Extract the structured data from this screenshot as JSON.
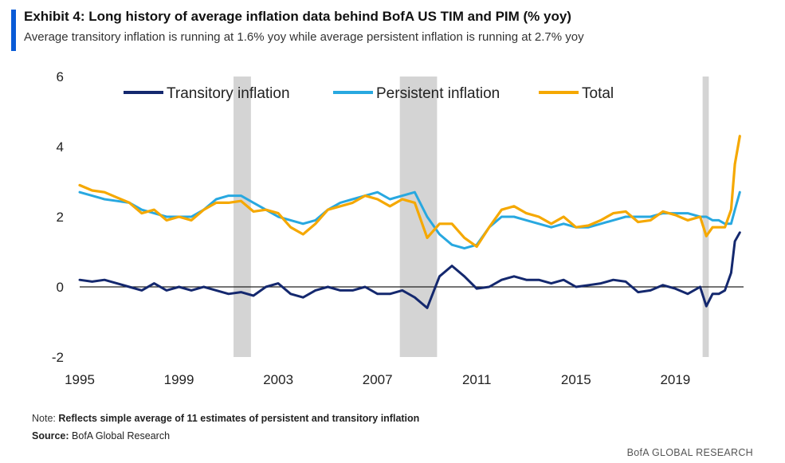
{
  "header": {
    "title": "Exhibit 4: Long history of average inflation data behind BofA US TIM and PIM (% yoy)",
    "subtitle": "Average transitory inflation is running at 1.6% yoy while average persistent inflation is running at 2.7% yoy"
  },
  "footer": {
    "note_label": "Note:",
    "note_text": "Reflects simple average of 11 estimates of persistent and transitory inflation",
    "source_label": "Source:",
    "source_text": "BofA Global Research",
    "brand": "BofA GLOBAL RESEARCH"
  },
  "colors": {
    "accent": "#0a5bd7",
    "transitory": "#14286e",
    "persistent": "#28a8e0",
    "total": "#f5a800",
    "recession": "#d4d4d4"
  },
  "chart_data": {
    "type": "line",
    "title": "Exhibit 4: Long history of average inflation data behind BofA US TIM and PIM (% yoy)",
    "subtitle": "Average transitory inflation is running at 1.6% yoy while average persistent inflation is running at 2.7% yoy",
    "xlabel": "",
    "ylabel": "",
    "xlim": [
      1995,
      2021.75
    ],
    "ylim": [
      -2,
      6
    ],
    "x_ticks": [
      "1995",
      "1999",
      "2003",
      "2007",
      "2011",
      "2015",
      "2019"
    ],
    "y_ticks": [
      "6",
      "4",
      "2",
      "0",
      "-2"
    ],
    "grid": false,
    "legend_position": "top",
    "recession_bands": [
      [
        2001.2,
        2001.9
      ],
      [
        2007.9,
        2009.4
      ],
      [
        2020.1,
        2020.35
      ]
    ],
    "series": [
      {
        "name": "Transitory inflation",
        "x": [
          1995.0,
          1995.5,
          1996.0,
          1996.5,
          1997.0,
          1997.5,
          1998.0,
          1998.5,
          1999.0,
          1999.5,
          2000.0,
          2000.5,
          2001.0,
          2001.5,
          2002.0,
          2002.5,
          2003.0,
          2003.5,
          2004.0,
          2004.5,
          2005.0,
          2005.5,
          2006.0,
          2006.5,
          2007.0,
          2007.5,
          2008.0,
          2008.5,
          2009.0,
          2009.5,
          2010.0,
          2010.5,
          2011.0,
          2011.5,
          2012.0,
          2012.5,
          2013.0,
          2013.5,
          2014.0,
          2014.5,
          2015.0,
          2015.5,
          2016.0,
          2016.5,
          2017.0,
          2017.5,
          2018.0,
          2018.5,
          2019.0,
          2019.5,
          2020.0,
          2020.25,
          2020.5,
          2020.75,
          2021.0,
          2021.25,
          2021.4,
          2021.6
        ],
        "values": [
          0.2,
          0.15,
          0.2,
          0.1,
          0.0,
          -0.1,
          0.1,
          -0.1,
          0.0,
          -0.1,
          0.0,
          -0.1,
          -0.2,
          -0.15,
          -0.25,
          0.0,
          0.1,
          -0.2,
          -0.3,
          -0.1,
          0.0,
          -0.1,
          -0.1,
          0.0,
          -0.2,
          -0.2,
          -0.1,
          -0.3,
          -0.6,
          0.3,
          0.6,
          0.3,
          -0.05,
          0.0,
          0.2,
          0.3,
          0.2,
          0.2,
          0.1,
          0.2,
          0.0,
          0.05,
          0.1,
          0.2,
          0.15,
          -0.15,
          -0.1,
          0.05,
          -0.05,
          -0.2,
          0.0,
          -0.55,
          -0.2,
          -0.2,
          -0.1,
          0.4,
          1.3,
          1.55
        ]
      },
      {
        "name": "Persistent inflation",
        "x": [
          1995.0,
          1995.5,
          1996.0,
          1996.5,
          1997.0,
          1997.5,
          1998.0,
          1998.5,
          1999.0,
          1999.5,
          2000.0,
          2000.5,
          2001.0,
          2001.5,
          2002.0,
          2002.5,
          2003.0,
          2003.5,
          2004.0,
          2004.5,
          2005.0,
          2005.5,
          2006.0,
          2006.5,
          2007.0,
          2007.5,
          2008.0,
          2008.5,
          2009.0,
          2009.5,
          2010.0,
          2010.5,
          2011.0,
          2011.5,
          2012.0,
          2012.5,
          2013.0,
          2013.5,
          2014.0,
          2014.5,
          2015.0,
          2015.5,
          2016.0,
          2016.5,
          2017.0,
          2017.5,
          2018.0,
          2018.5,
          2019.0,
          2019.5,
          2020.0,
          2020.25,
          2020.5,
          2020.75,
          2021.0,
          2021.25,
          2021.4,
          2021.6
        ],
        "values": [
          2.7,
          2.6,
          2.5,
          2.45,
          2.4,
          2.2,
          2.1,
          2.0,
          2.0,
          2.0,
          2.2,
          2.5,
          2.6,
          2.6,
          2.4,
          2.2,
          2.0,
          1.9,
          1.8,
          1.9,
          2.2,
          2.4,
          2.5,
          2.6,
          2.7,
          2.5,
          2.6,
          2.7,
          2.0,
          1.5,
          1.2,
          1.1,
          1.2,
          1.7,
          2.0,
          2.0,
          1.9,
          1.8,
          1.7,
          1.8,
          1.7,
          1.7,
          1.8,
          1.9,
          2.0,
          2.0,
          2.0,
          2.1,
          2.1,
          2.1,
          2.0,
          2.0,
          1.9,
          1.9,
          1.8,
          1.8,
          2.2,
          2.7
        ]
      },
      {
        "name": "Total",
        "x": [
          1995.0,
          1995.5,
          1996.0,
          1996.5,
          1997.0,
          1997.5,
          1998.0,
          1998.5,
          1999.0,
          1999.5,
          2000.0,
          2000.5,
          2001.0,
          2001.5,
          2002.0,
          2002.5,
          2003.0,
          2003.5,
          2004.0,
          2004.5,
          2005.0,
          2005.5,
          2006.0,
          2006.5,
          2007.0,
          2007.5,
          2008.0,
          2008.5,
          2009.0,
          2009.5,
          2010.0,
          2010.5,
          2011.0,
          2011.5,
          2012.0,
          2012.5,
          2013.0,
          2013.5,
          2014.0,
          2014.5,
          2015.0,
          2015.5,
          2016.0,
          2016.5,
          2017.0,
          2017.5,
          2018.0,
          2018.5,
          2019.0,
          2019.5,
          2020.0,
          2020.25,
          2020.5,
          2020.75,
          2021.0,
          2021.25,
          2021.4,
          2021.6
        ],
        "values": [
          2.9,
          2.75,
          2.7,
          2.55,
          2.4,
          2.1,
          2.2,
          1.9,
          2.0,
          1.9,
          2.2,
          2.4,
          2.4,
          2.45,
          2.15,
          2.2,
          2.1,
          1.7,
          1.5,
          1.8,
          2.2,
          2.3,
          2.4,
          2.6,
          2.5,
          2.3,
          2.5,
          2.4,
          1.4,
          1.8,
          1.8,
          1.4,
          1.15,
          1.7,
          2.2,
          2.3,
          2.1,
          2.0,
          1.8,
          2.0,
          1.7,
          1.75,
          1.9,
          2.1,
          2.15,
          1.85,
          1.9,
          2.15,
          2.05,
          1.9,
          2.0,
          1.45,
          1.7,
          1.7,
          1.7,
          2.2,
          3.5,
          4.3
        ]
      }
    ]
  }
}
